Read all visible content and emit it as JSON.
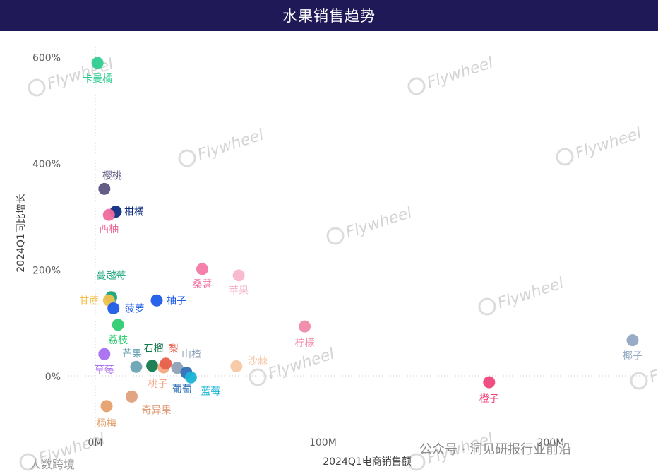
{
  "header": {
    "title": "水果销售趋势"
  },
  "chart_data": {
    "type": "scatter",
    "title": "水果销售趋势",
    "xlabel": "2024Q1电商销售额",
    "ylabel": "2024Q1同比增长",
    "xlim": [
      -13,
      245
    ],
    "ylim": [
      -100,
      630
    ],
    "xticks": [
      0,
      100,
      200
    ],
    "xtick_labels": [
      "0M",
      "100M",
      "200M"
    ],
    "yticks": [
      0,
      200,
      400,
      600
    ],
    "ytick_labels": [
      "0%",
      "200%",
      "400%",
      "600%"
    ],
    "grid": false,
    "points": [
      {
        "name": "卡曼橘",
        "x": 1,
        "y": 590,
        "color": "#2ecc8f"
      },
      {
        "name": "樱桃",
        "x": 4,
        "y": 353,
        "color": "#5c5580"
      },
      {
        "name": "柑橘",
        "x": 9,
        "y": 310,
        "color": "#0e2c82"
      },
      {
        "name": "西柚",
        "x": 6,
        "y": 304,
        "color": "#f06a9b"
      },
      {
        "name": "蔓越莓",
        "x": 7,
        "y": 149,
        "color": "#18a57a"
      },
      {
        "name": "甘蔗",
        "x": 6,
        "y": 143,
        "color": "#f2c14e"
      },
      {
        "name": "菠萝",
        "x": 8,
        "y": 128,
        "color": "#1d5be8"
      },
      {
        "name": "柚子",
        "x": 27,
        "y": 143,
        "color": "#1d5be8"
      },
      {
        "name": "桑葚",
        "x": 47,
        "y": 202,
        "color": "#f27aa8"
      },
      {
        "name": "苹果",
        "x": 63,
        "y": 190,
        "color": "#f7b6cf"
      },
      {
        "name": "荔枝",
        "x": 10,
        "y": 97,
        "color": "#2ecc71"
      },
      {
        "name": "草莓",
        "x": 4,
        "y": 42,
        "color": "#a86ef0"
      },
      {
        "name": "芒果",
        "x": 18,
        "y": 18,
        "color": "#6aa3b4"
      },
      {
        "name": "石榴",
        "x": 25,
        "y": 20,
        "color": "#127a4e"
      },
      {
        "name": "桃子",
        "x": 30,
        "y": 17,
        "color": "#f4a582"
      },
      {
        "name": "梨",
        "x": 31,
        "y": 24,
        "color": "#e8604c"
      },
      {
        "name": "山楂",
        "x": 36,
        "y": 16,
        "color": "#8fa1b8"
      },
      {
        "name": "葡萄",
        "x": 40,
        "y": 7,
        "color": "#2f6fb8"
      },
      {
        "name": "蓝莓",
        "x": 42,
        "y": -2,
        "color": "#19b3d6"
      },
      {
        "name": "沙棘",
        "x": 62,
        "y": 19,
        "color": "#f7c7a3"
      },
      {
        "name": "柠檬",
        "x": 92,
        "y": 94,
        "color": "#f08aa8"
      },
      {
        "name": "奇异果",
        "x": 16,
        "y": -38,
        "color": "#e0a07c"
      },
      {
        "name": "杨梅",
        "x": 5,
        "y": -56,
        "color": "#e6a06b"
      },
      {
        "name": "橙子",
        "x": 173,
        "y": -11,
        "color": "#f0457a"
      },
      {
        "name": "椰子",
        "x": 236,
        "y": 68,
        "color": "#92a8c4"
      }
    ]
  },
  "watermarks": {
    "brand": "Flywheel",
    "footer_left": "人数跨境",
    "footer_right": "公众号 · 洞见研报行业前沿"
  }
}
